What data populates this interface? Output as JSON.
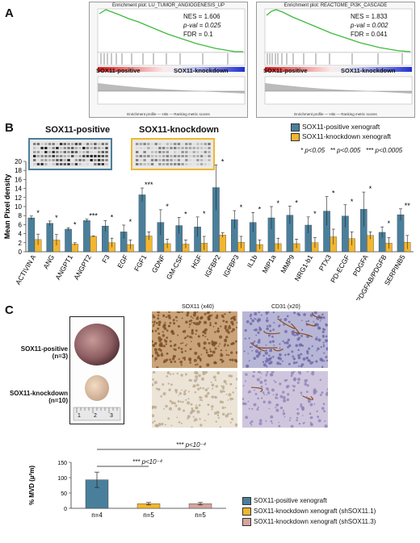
{
  "panels": {
    "a": "A",
    "b": "B",
    "c": "C"
  },
  "gsea": [
    {
      "title": "Enrichment plot: LU_TUMOR_ANGIOGENESIS_UP",
      "nes": "NES = 1.606",
      "pval": "p-val = 0.025",
      "fdr": "FDR = 0.1",
      "label_left": "SOX11-positive",
      "label_right": "SOX11-knockdown",
      "legend": "Enrichment profile — Hits — Ranking metric scores"
    },
    {
      "title": "Enrichment plot: REACTOME_PI3K_CASCADE",
      "nes": "NES = 1.833",
      "pval": "p-val = 0.002",
      "fdr": "FDR = 0.041",
      "label_left": "SOX11-positive",
      "label_right": "SOX11-knockdown",
      "legend": "Enrichment profile — Hits — Ranking metric scores"
    }
  ],
  "panel_b": {
    "array_left_label": "SOX11-positive",
    "array_right_label": "SOX11-knockdown",
    "legend": [
      {
        "label": "SOX11-positive xenograft",
        "color": "#4a7f9c"
      },
      {
        "label": "SOX11-knockdown xenograft",
        "color": "#f2b630"
      }
    ],
    "sig_note": "* p<0.05   ** p<0.005   *** p<0.0005"
  },
  "panel_c": {
    "row_positive": "SOX11-positive",
    "row_positive_n": "(n=3)",
    "row_knockdown": "SOX11-knockdown",
    "row_knockdown_n": "(n=10)",
    "col_sox11": "SOX11 (x40)",
    "col_cd31": "CD31 (x20)",
    "ruler_marks": [
      "1",
      "2",
      "3"
    ],
    "sig_top": "*** p<10⁻⁴",
    "sig_bottom": "*** p<10⁻⁴",
    "legend": [
      {
        "label": "SOX11-positive xenograft",
        "color": "#4a7f9c"
      },
      {
        "label": "SOX11-knockdown xenograft (shSOX11.1)",
        "color": "#f2b630"
      },
      {
        "label": "SOX11-knockdown xenograft (shSOX11.3)",
        "color": "#d6a59f"
      }
    ]
  },
  "chart_data": [
    {
      "type": "bar",
      "ylabel": "Mean Pixel density",
      "ylim": [
        0,
        20
      ],
      "yticks": [
        0,
        2,
        4,
        6,
        8,
        10,
        12,
        14,
        16,
        18,
        20
      ],
      "categories": [
        "ACTIVIN A",
        "ANG",
        "ANGPT1",
        "ANGPT2",
        "F3",
        "EGF",
        "FGF1",
        "GDNF",
        "GM-CSF",
        "HGF",
        "IGFBP2",
        "IGFBP3",
        "IL1b",
        "MIP1a",
        "MMP9",
        "NRG1-b1",
        "PTX3",
        "PD-ECGF",
        "PDGFA",
        "PDGFAB/PDGFB",
        "SERPINB5"
      ],
      "series": [
        {
          "name": "SOX11-positive xenograft",
          "color": "#4a7f9c",
          "values": [
            7.5,
            6.3,
            5.0,
            6.9,
            5.7,
            4.4,
            12.6,
            6.5,
            5.8,
            5.5,
            14.2,
            7.1,
            6.5,
            7.5,
            8.1,
            5.9,
            9.0,
            7.9,
            9.4,
            4.3,
            8.2
          ],
          "errors": [
            0.4,
            0.5,
            0.3,
            0.3,
            1.2,
            1.5,
            1.5,
            2.8,
            1.8,
            2.2,
            5.0,
            2.0,
            2.2,
            2.5,
            2.0,
            1.8,
            3.2,
            2.5,
            3.8,
            1.2,
            1.3
          ]
        },
        {
          "name": "SOX11-knockdown xenograft",
          "color": "#f2b630",
          "values": [
            2.7,
            2.6,
            1.7,
            3.4,
            2.0,
            1.6,
            3.5,
            1.8,
            1.7,
            1.9,
            3.7,
            2.1,
            1.6,
            1.8,
            1.8,
            2.0,
            3.3,
            2.9,
            3.6,
            1.9,
            2.1
          ],
          "errors": [
            1.2,
            1.2,
            0.3,
            0.1,
            1.0,
            1.0,
            0.9,
            1.0,
            0.9,
            1.5,
            0.5,
            1.3,
            1.0,
            1.2,
            1.0,
            1.1,
            1.7,
            1.5,
            0.8,
            1.2,
            1.5
          ]
        }
      ],
      "significance": [
        "*",
        "*",
        "*",
        "***",
        "*",
        "*",
        "***",
        "*",
        "*",
        "*",
        "*",
        "*",
        "*",
        "*",
        "*",
        "*",
        "*",
        "*",
        "*",
        "*",
        "**"
      ]
    },
    {
      "type": "bar",
      "ylabel": "% MVD (µ²m)",
      "ylim": [
        0,
        150
      ],
      "yticks": [
        0,
        50,
        100,
        150
      ],
      "categories": [
        "n=4",
        "n=5",
        "n=5"
      ],
      "values": [
        93,
        15,
        15
      ],
      "errors": [
        25,
        4,
        4
      ],
      "colors": [
        "#4a7f9c",
        "#f2b630",
        "#d6a59f"
      ]
    }
  ]
}
